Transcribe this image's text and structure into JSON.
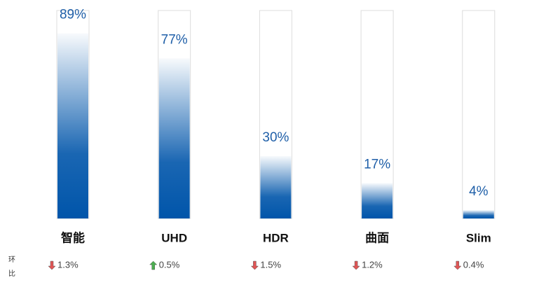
{
  "chart_data": {
    "type": "bar",
    "categories": [
      "智能",
      "UHD",
      "HDR",
      "曲面",
      "Slim"
    ],
    "values": [
      89,
      77,
      30,
      17,
      4
    ],
    "value_labels": [
      "89%",
      "77%",
      "30%",
      "17%",
      "4%"
    ],
    "color": "#0055aa",
    "ylim": [
      0,
      100
    ],
    "change_title": "环比",
    "change_values": [
      1.3,
      0.5,
      1.5,
      1.2,
      0.4
    ],
    "change_labels": [
      "1.3%",
      "0.5%",
      "1.5%",
      "1.2%",
      "0.4%"
    ],
    "change_directions": [
      "down",
      "up",
      "down",
      "down",
      "down"
    ],
    "up_color": "#4caf50",
    "down_color": "#e05555"
  }
}
